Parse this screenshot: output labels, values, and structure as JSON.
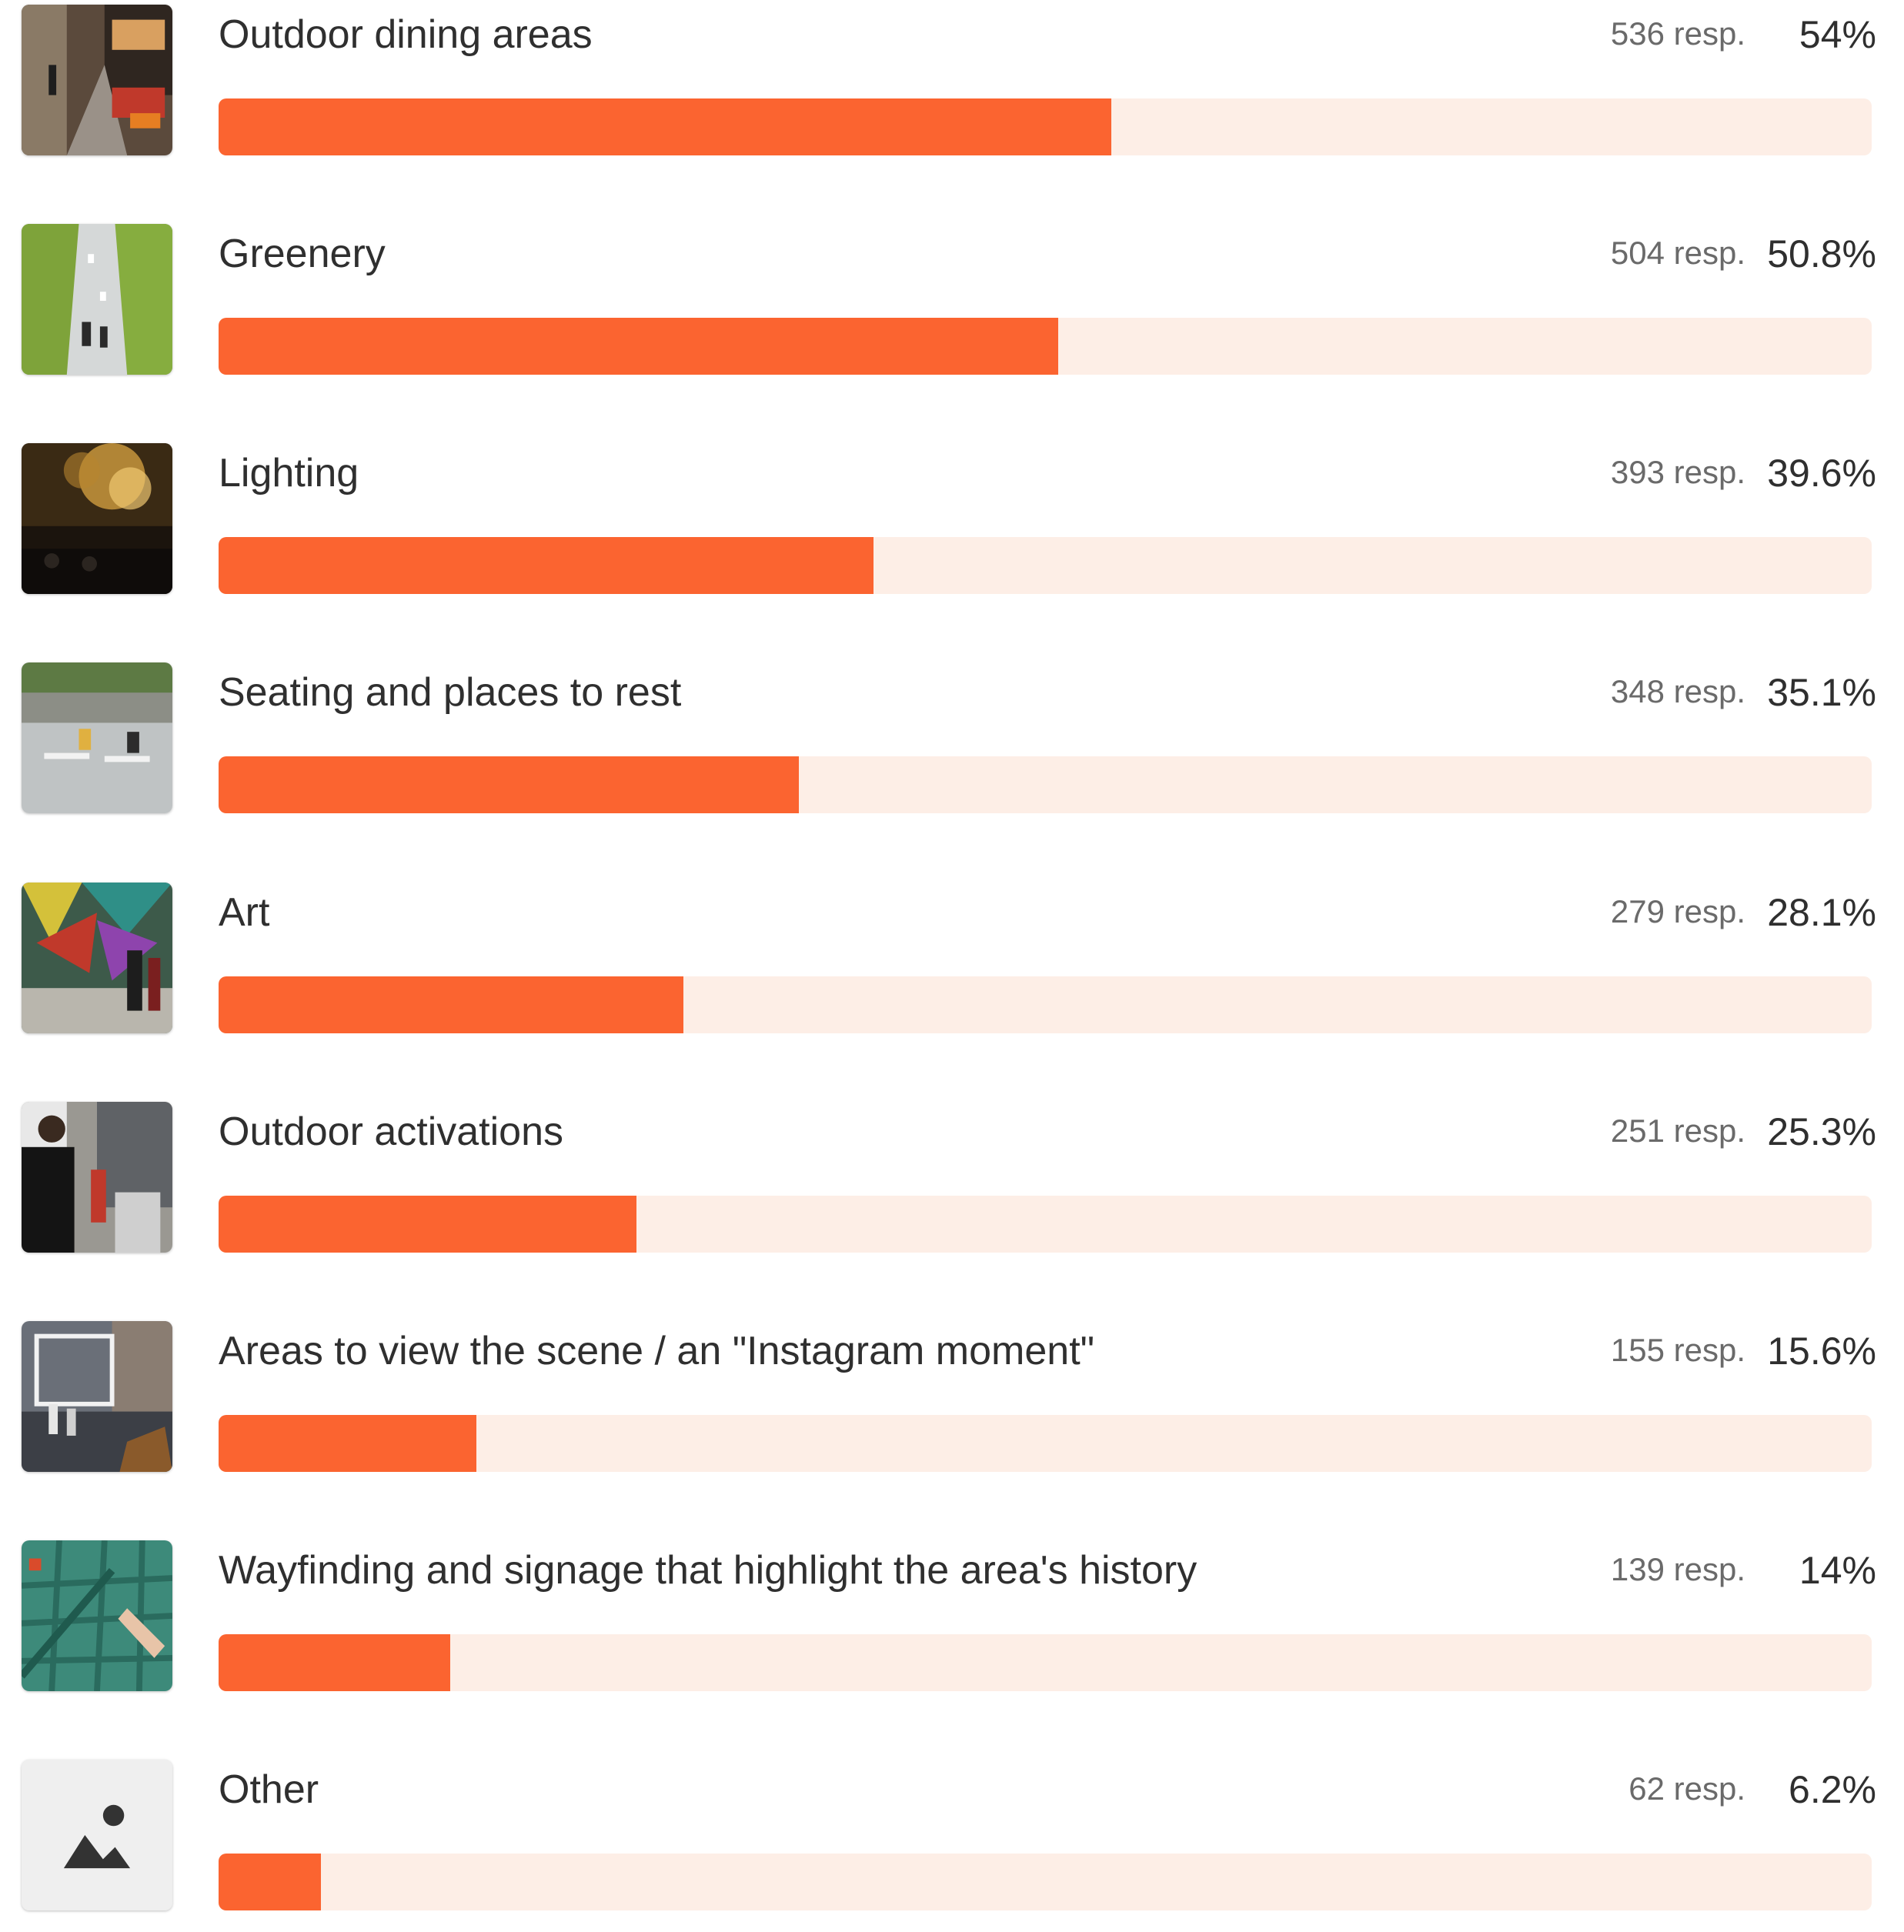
{
  "accent_color": "#fb6430",
  "track_color": "#fdeee6",
  "options": [
    {
      "label": "Outdoor dining areas",
      "responses": "536 resp.",
      "percent": "54%",
      "fraction": 0.54,
      "image_icon": "street-dining-photo"
    },
    {
      "label": "Greenery",
      "responses": "504 resp.",
      "percent": "50.8%",
      "fraction": 0.508,
      "image_icon": "greenery-photo"
    },
    {
      "label": "Lighting",
      "responses": "393 resp.",
      "percent": "39.6%",
      "fraction": 0.396,
      "image_icon": "string-lights-photo"
    },
    {
      "label": "Seating and places to rest",
      "responses": "348 resp.",
      "percent": "35.1%",
      "fraction": 0.351,
      "image_icon": "plaza-seating-photo"
    },
    {
      "label": "Art",
      "responses": "279 resp.",
      "percent": "28.1%",
      "fraction": 0.281,
      "image_icon": "mural-art-photo"
    },
    {
      "label": "Outdoor activations",
      "responses": "251 resp.",
      "percent": "25.3%",
      "fraction": 0.253,
      "image_icon": "street-performer-photo"
    },
    {
      "label": "Areas to view the scene / an \"Instagram moment\"",
      "responses": "155 resp.",
      "percent": "15.6%",
      "fraction": 0.156,
      "image_icon": "photo-frame-photo"
    },
    {
      "label": "Wayfinding and signage that highlight the area's history",
      "responses": "139 resp.",
      "percent": "14%",
      "fraction": 0.14,
      "image_icon": "map-signage-photo"
    },
    {
      "label": "Other",
      "responses": "62 resp.",
      "percent": "6.2%",
      "fraction": 0.062,
      "image_icon": "image-placeholder-icon"
    }
  ]
}
